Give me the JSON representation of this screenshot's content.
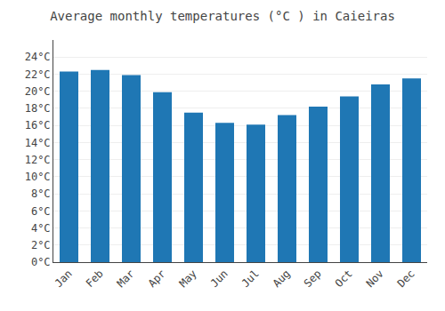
{
  "chart_data": {
    "type": "bar",
    "title": "Average monthly temperatures (°C ) in Caieiras",
    "categories": [
      "Jan",
      "Feb",
      "Mar",
      "Apr",
      "May",
      "Jun",
      "Jul",
      "Aug",
      "Sep",
      "Oct",
      "Nov",
      "Dec"
    ],
    "values": [
      22.3,
      22.5,
      21.9,
      19.9,
      17.5,
      16.3,
      16.1,
      17.2,
      18.2,
      19.4,
      20.8,
      21.5
    ],
    "ylim": [
      0,
      26
    ],
    "yticks": [
      {
        "value": 0,
        "label": "0°C"
      },
      {
        "value": 2,
        "label": "2°C"
      },
      {
        "value": 4,
        "label": "4°C"
      },
      {
        "value": 6,
        "label": "6°C"
      },
      {
        "value": 8,
        "label": "8°C"
      },
      {
        "value": 10,
        "label": "10°C"
      },
      {
        "value": 12,
        "label": "12°C"
      },
      {
        "value": 14,
        "label": "14°C"
      },
      {
        "value": 16,
        "label": "16°C"
      },
      {
        "value": 18,
        "label": "18°C"
      },
      {
        "value": 20,
        "label": "20°C"
      },
      {
        "value": 22,
        "label": "22°C"
      },
      {
        "value": 24,
        "label": "24°C"
      }
    ],
    "grid": true
  }
}
